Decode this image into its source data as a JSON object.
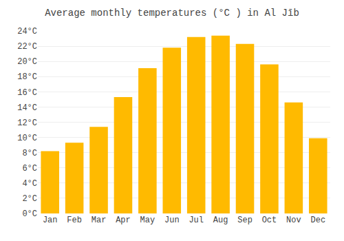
{
  "chart_data": {
    "type": "bar",
    "title": "Average monthly temperatures (°C ) in Al Jīb",
    "categories": [
      "Jan",
      "Feb",
      "Mar",
      "Apr",
      "May",
      "Jun",
      "Jul",
      "Aug",
      "Sep",
      "Oct",
      "Nov",
      "Dec"
    ],
    "values": [
      8.2,
      9.3,
      11.4,
      15.3,
      19.1,
      21.8,
      23.2,
      23.4,
      22.3,
      19.6,
      14.6,
      9.9
    ],
    "color": "#FFBA00",
    "ylim": [
      0,
      24
    ],
    "yticks": [
      {
        "value": 0,
        "label": "0°C"
      },
      {
        "value": 2,
        "label": "2°C"
      },
      {
        "value": 4,
        "label": "4°C"
      },
      {
        "value": 6,
        "label": "6°C"
      },
      {
        "value": 8,
        "label": "8°C"
      },
      {
        "value": 10,
        "label": "10°C"
      },
      {
        "value": 12,
        "label": "12°C"
      },
      {
        "value": 14,
        "label": "14°C"
      },
      {
        "value": 16,
        "label": "16°C"
      },
      {
        "value": 18,
        "label": "18°C"
      },
      {
        "value": 20,
        "label": "20°C"
      },
      {
        "value": 22,
        "label": "22°C"
      },
      {
        "value": 24,
        "label": "24°C"
      }
    ],
    "grid": true
  }
}
